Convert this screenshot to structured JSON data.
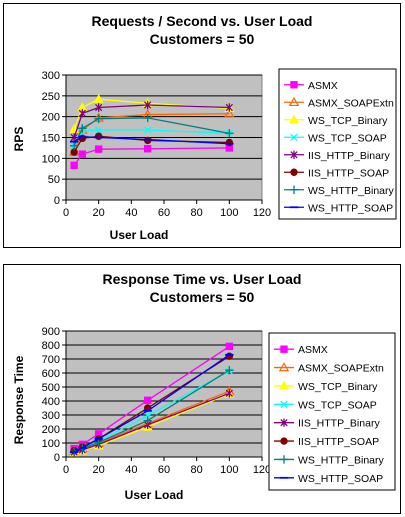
{
  "charts": [
    {
      "title_line1": "Requests / Second  vs.  User Load",
      "title_line2": "Customers = 50",
      "xlabel": "User Load",
      "ylabel": "RPS",
      "yticks": [
        "0",
        "50",
        "100",
        "150",
        "200",
        "250",
        "300"
      ],
      "xticks": [
        "0",
        "20",
        "40",
        "60",
        "80",
        "100",
        "120"
      ]
    },
    {
      "title_line1": "Response Time  vs.  User Load",
      "title_line2": "Customers = 50",
      "xlabel": "User Load",
      "ylabel": "Response Time",
      "yticks": [
        "0",
        "100",
        "200",
        "300",
        "400",
        "500",
        "600",
        "700",
        "800",
        "900"
      ],
      "xticks": [
        "0",
        "20",
        "40",
        "60",
        "80",
        "100",
        "120"
      ]
    }
  ],
  "chart_data": [
    {
      "type": "line",
      "title": "Requests / Second  vs.  User Load\nCustomers = 50",
      "xlabel": "User Load",
      "ylabel": "RPS",
      "xlim": [
        0,
        120
      ],
      "ylim": [
        0,
        300
      ],
      "grid": "horizontal",
      "background": "#c0c0c0",
      "legend": "right",
      "x": [
        5,
        10,
        20,
        50,
        100
      ],
      "series": [
        {
          "name": "ASMX",
          "color": "#ff00ff",
          "marker": "square",
          "values": [
            83,
            110,
            122,
            123,
            125
          ]
        },
        {
          "name": "ASMX_SOAPExtn",
          "color": "#ff6600",
          "marker": "triangle",
          "values": [
            115,
            168,
            197,
            205,
            207
          ]
        },
        {
          "name": "WS_TCP_Binary",
          "color": "#ffff00",
          "marker": "triangle-fill",
          "values": [
            170,
            222,
            242,
            232,
            220
          ]
        },
        {
          "name": "WS_TCP_SOAP",
          "color": "#00ffff",
          "marker": "x",
          "values": [
            130,
            165,
            168,
            168,
            160
          ]
        },
        {
          "name": "IIS_HTTP_Binary",
          "color": "#800080",
          "marker": "asterisk",
          "values": [
            150,
            208,
            222,
            228,
            222
          ]
        },
        {
          "name": "IIS_HTTP_SOAP",
          "color": "#800000",
          "marker": "circle",
          "values": [
            115,
            148,
            153,
            143,
            138
          ]
        },
        {
          "name": "WS_HTTP_Binary",
          "color": "#008080",
          "marker": "plus",
          "values": [
            130,
            172,
            195,
            197,
            160
          ]
        },
        {
          "name": "WS_HTTP_SOAP",
          "color": "#0000ff",
          "marker": "dash",
          "values": [
            140,
            152,
            150,
            145,
            135
          ]
        }
      ]
    },
    {
      "type": "line",
      "title": "Response Time  vs.  User Load\nCustomers = 50",
      "xlabel": "User Load",
      "ylabel": "Response Time",
      "xlim": [
        0,
        120
      ],
      "ylim": [
        0,
        900
      ],
      "grid": "horizontal",
      "background": "#c0c0c0",
      "legend": "right",
      "x": [
        5,
        10,
        20,
        50,
        100
      ],
      "series": [
        {
          "name": "ASMX",
          "color": "#ff00ff",
          "marker": "square",
          "values": [
            60,
            90,
            165,
            405,
            790
          ]
        },
        {
          "name": "ASMX_SOAPExtn",
          "color": "#ff6600",
          "marker": "triangle",
          "values": [
            40,
            60,
            100,
            240,
            470
          ]
        },
        {
          "name": "WS_TCP_Binary",
          "color": "#ffff00",
          "marker": "triangle-fill",
          "values": [
            30,
            45,
            80,
            215,
            450
          ]
        },
        {
          "name": "WS_TCP_SOAP",
          "color": "#00ffff",
          "marker": "x",
          "values": [
            35,
            60,
            115,
            295,
            615
          ]
        },
        {
          "name": "IIS_HTTP_Binary",
          "color": "#800080",
          "marker": "asterisk",
          "values": [
            35,
            50,
            90,
            230,
            455
          ]
        },
        {
          "name": "IIS_HTTP_SOAP",
          "color": "#800000",
          "marker": "circle",
          "values": [
            45,
            70,
            130,
            350,
            720
          ]
        },
        {
          "name": "WS_HTTP_Binary",
          "color": "#008080",
          "marker": "plus",
          "values": [
            40,
            60,
            105,
            260,
            620
          ]
        },
        {
          "name": "WS_HTTP_SOAP",
          "color": "#0000ff",
          "marker": "dash",
          "values": [
            35,
            65,
            130,
            330,
            730
          ]
        }
      ]
    }
  ]
}
